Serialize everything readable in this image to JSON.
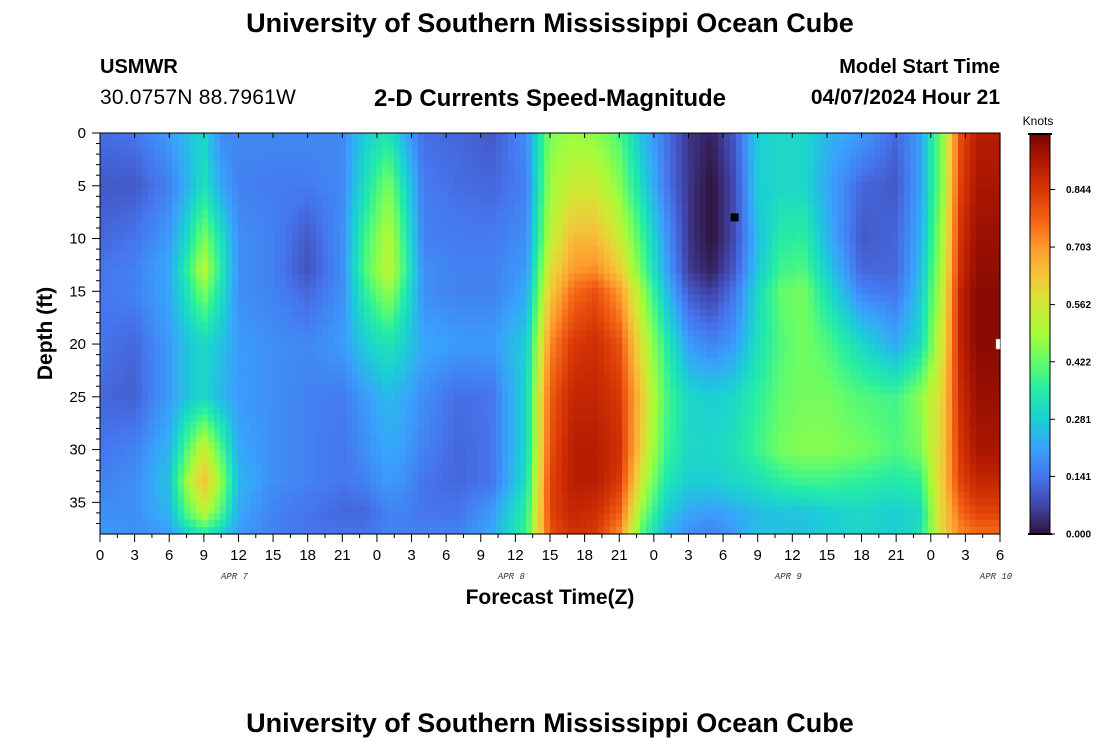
{
  "header": {
    "title": "University of Southern Mississippi Ocean Cube",
    "station_name": "USMWR",
    "station_coords": "30.0757N  88.7961W",
    "model_start_label": "Model Start Time",
    "model_start_value": "04/07/2024 Hour 21"
  },
  "footer": {
    "title": "University of Southern Mississippi Ocean Cube"
  },
  "chart_data": {
    "type": "heatmap",
    "title": "2-D Currents Speed-Magnitude",
    "xlabel": "Forecast Time(Z)",
    "ylabel": "Depth (ft)",
    "x_tick_labels": [
      "0",
      "3",
      "6",
      "9",
      "12",
      "15",
      "18",
      "21",
      "0",
      "3",
      "6",
      "9",
      "12",
      "15",
      "18",
      "21",
      "0",
      "3",
      "6",
      "9",
      "12",
      "15",
      "18",
      "21",
      "0",
      "3",
      "6"
    ],
    "x_range_hours": [
      0,
      78
    ],
    "date_labels": [
      {
        "label": "APR 7",
        "hour": 12
      },
      {
        "label": "APR 8",
        "hour": 36
      },
      {
        "label": "APR 9",
        "hour": 60
      },
      {
        "label": "APR 10",
        "hour": 78
      }
    ],
    "y_ticks": [
      0,
      5,
      10,
      15,
      20,
      25,
      30,
      35
    ],
    "y_range": [
      0,
      38
    ],
    "y_inverted": true,
    "colorbar": {
      "units": "Knots",
      "ticks": [
        "0.000",
        "0.141",
        "0.281",
        "0.422",
        "0.562",
        "0.703",
        "0.844"
      ],
      "range": [
        0,
        0.98
      ],
      "colormap": [
        "#30123b",
        "#4145ab",
        "#4675ed",
        "#39a2fc",
        "#1bcfd4",
        "#24eca6",
        "#61fc6c",
        "#a4fc3b",
        "#d1e834",
        "#f3c63a",
        "#fe9b2d",
        "#f36315",
        "#d93806",
        "#b11901",
        "#7a0403"
      ]
    },
    "speed_field": {
      "x_hours": [
        0,
        3,
        6,
        7.5,
        9,
        10.5,
        12,
        15,
        18,
        21,
        23,
        25,
        26.5,
        28,
        31,
        34,
        37,
        39,
        41,
        43,
        45,
        47,
        49,
        51,
        53,
        55,
        57,
        59,
        61,
        63,
        66,
        69,
        71,
        73,
        74.5,
        76,
        78
      ],
      "depth_ft": [
        0,
        5,
        10,
        13,
        15,
        20,
        25,
        30,
        33,
        36,
        38
      ],
      "values": [
        [
          0.13,
          0.14,
          0.2,
          0.25,
          0.3,
          0.17,
          0.17,
          0.17,
          0.17,
          0.17,
          0.28,
          0.33,
          0.22,
          0.13,
          0.12,
          0.1,
          0.18,
          0.45,
          0.48,
          0.46,
          0.4,
          0.25,
          0.14,
          0.05,
          0.02,
          0.1,
          0.28,
          0.3,
          0.3,
          0.24,
          0.2,
          0.12,
          0.2,
          0.45,
          0.8,
          0.9,
          0.9
        ],
        [
          0.1,
          0.1,
          0.16,
          0.23,
          0.32,
          0.22,
          0.16,
          0.15,
          0.15,
          0.17,
          0.32,
          0.45,
          0.3,
          0.15,
          0.13,
          0.12,
          0.16,
          0.48,
          0.55,
          0.55,
          0.46,
          0.3,
          0.15,
          0.05,
          0.0,
          0.08,
          0.28,
          0.3,
          0.3,
          0.22,
          0.12,
          0.1,
          0.2,
          0.45,
          0.82,
          0.92,
          0.92
        ],
        [
          0.12,
          0.14,
          0.2,
          0.3,
          0.45,
          0.32,
          0.18,
          0.16,
          0.1,
          0.18,
          0.38,
          0.52,
          0.36,
          0.16,
          0.15,
          0.15,
          0.18,
          0.52,
          0.65,
          0.65,
          0.55,
          0.38,
          0.2,
          0.05,
          0.0,
          0.08,
          0.25,
          0.35,
          0.36,
          0.24,
          0.1,
          0.12,
          0.22,
          0.48,
          0.85,
          0.94,
          0.94
        ],
        [
          0.14,
          0.16,
          0.22,
          0.35,
          0.52,
          0.35,
          0.18,
          0.16,
          0.09,
          0.18,
          0.4,
          0.53,
          0.38,
          0.18,
          0.16,
          0.16,
          0.2,
          0.58,
          0.7,
          0.72,
          0.62,
          0.42,
          0.22,
          0.06,
          0.02,
          0.1,
          0.27,
          0.38,
          0.4,
          0.28,
          0.12,
          0.12,
          0.24,
          0.5,
          0.86,
          0.95,
          0.95
        ],
        [
          0.14,
          0.16,
          0.22,
          0.32,
          0.45,
          0.32,
          0.18,
          0.16,
          0.12,
          0.18,
          0.36,
          0.48,
          0.34,
          0.18,
          0.16,
          0.16,
          0.22,
          0.62,
          0.76,
          0.8,
          0.7,
          0.48,
          0.26,
          0.1,
          0.06,
          0.14,
          0.3,
          0.42,
          0.44,
          0.32,
          0.16,
          0.14,
          0.26,
          0.52,
          0.88,
          0.96,
          0.96
        ],
        [
          0.14,
          0.12,
          0.2,
          0.26,
          0.3,
          0.26,
          0.2,
          0.18,
          0.17,
          0.2,
          0.28,
          0.33,
          0.28,
          0.22,
          0.2,
          0.2,
          0.28,
          0.72,
          0.84,
          0.86,
          0.8,
          0.56,
          0.36,
          0.2,
          0.16,
          0.2,
          0.32,
          0.4,
          0.44,
          0.4,
          0.3,
          0.22,
          0.3,
          0.55,
          0.88,
          0.96,
          0.96
        ],
        [
          0.12,
          0.11,
          0.2,
          0.26,
          0.3,
          0.24,
          0.2,
          0.18,
          0.16,
          0.15,
          0.2,
          0.25,
          0.22,
          0.18,
          0.13,
          0.14,
          0.3,
          0.78,
          0.88,
          0.88,
          0.84,
          0.62,
          0.4,
          0.3,
          0.28,
          0.3,
          0.36,
          0.42,
          0.44,
          0.44,
          0.4,
          0.38,
          0.46,
          0.6,
          0.86,
          0.94,
          0.94
        ],
        [
          0.14,
          0.16,
          0.24,
          0.4,
          0.55,
          0.4,
          0.22,
          0.18,
          0.16,
          0.14,
          0.18,
          0.22,
          0.2,
          0.16,
          0.12,
          0.14,
          0.3,
          0.8,
          0.9,
          0.9,
          0.86,
          0.6,
          0.38,
          0.3,
          0.3,
          0.32,
          0.38,
          0.44,
          0.46,
          0.46,
          0.44,
          0.4,
          0.44,
          0.62,
          0.84,
          0.92,
          0.92
        ],
        [
          0.16,
          0.18,
          0.26,
          0.48,
          0.64,
          0.48,
          0.24,
          0.18,
          0.16,
          0.14,
          0.16,
          0.2,
          0.18,
          0.14,
          0.12,
          0.14,
          0.32,
          0.82,
          0.9,
          0.9,
          0.84,
          0.54,
          0.34,
          0.28,
          0.28,
          0.3,
          0.32,
          0.36,
          0.38,
          0.38,
          0.36,
          0.34,
          0.36,
          0.62,
          0.82,
          0.88,
          0.88
        ],
        [
          0.18,
          0.18,
          0.24,
          0.4,
          0.52,
          0.4,
          0.22,
          0.16,
          0.14,
          0.12,
          0.12,
          0.16,
          0.16,
          0.14,
          0.14,
          0.2,
          0.36,
          0.82,
          0.88,
          0.86,
          0.78,
          0.46,
          0.28,
          0.22,
          0.2,
          0.22,
          0.25,
          0.26,
          0.26,
          0.28,
          0.3,
          0.28,
          0.3,
          0.6,
          0.76,
          0.82,
          0.82
        ],
        [
          0.2,
          0.18,
          0.2,
          0.28,
          0.34,
          0.28,
          0.2,
          0.16,
          0.14,
          0.14,
          0.14,
          0.16,
          0.16,
          0.16,
          0.16,
          0.22,
          0.38,
          0.8,
          0.86,
          0.84,
          0.72,
          0.4,
          0.24,
          0.18,
          0.16,
          0.2,
          0.26,
          0.26,
          0.26,
          0.28,
          0.3,
          0.28,
          0.32,
          0.6,
          0.72,
          0.76,
          0.76
        ]
      ]
    },
    "marker": {
      "hour": 55,
      "depth_ft": 8,
      "color": "#000000"
    },
    "grid": false,
    "legend": "colorbar-right"
  }
}
